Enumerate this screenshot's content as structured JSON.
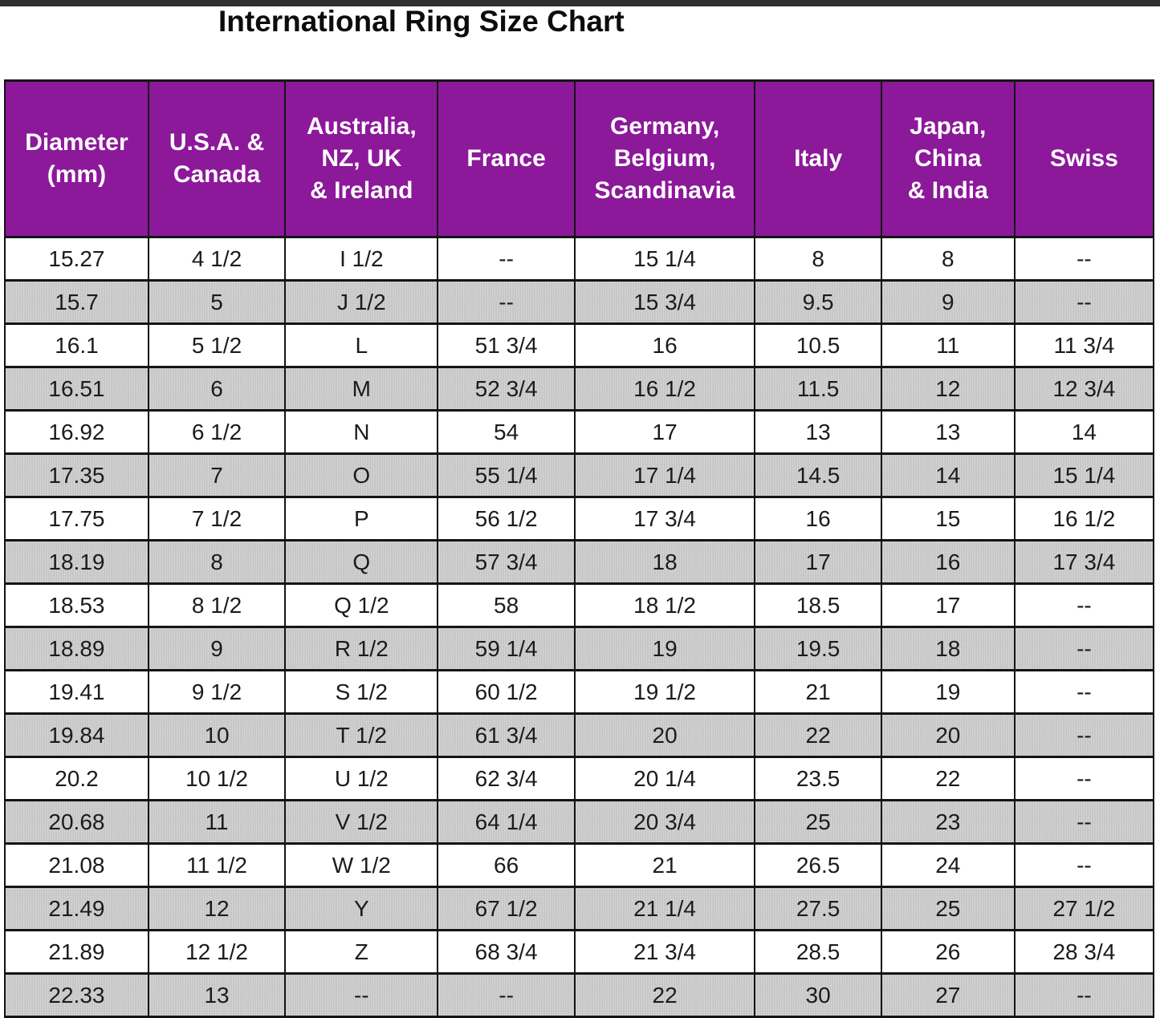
{
  "title": "International Ring Size Chart",
  "colors": {
    "header_bg": "#8c189a",
    "header_text": "#ffffff",
    "gray_row_bg": "#c7c7c7",
    "white_row_bg": "#ffffff",
    "grid_border": "#141414",
    "top_bar": "#2f2f2f"
  },
  "table": {
    "columns": [
      {
        "id": "diameter-mm",
        "label": "Diameter (mm)",
        "lines": [
          "Diameter",
          "(mm)"
        ]
      },
      {
        "id": "usa-canada",
        "label": "U.S.A. & Canada",
        "lines": [
          "U.S.A. &",
          "Canada"
        ]
      },
      {
        "id": "australia-nz-uk-ireland",
        "label": "Australia, NZ, UK & Ireland",
        "lines": [
          "Australia,",
          "NZ, UK",
          "& Ireland"
        ]
      },
      {
        "id": "france",
        "label": "France",
        "lines": [
          "France"
        ]
      },
      {
        "id": "germany-belgium-scandinavia",
        "label": "Germany, Belgium, Scandinavia",
        "lines": [
          "Germany,",
          "Belgium,",
          "Scandinavia"
        ]
      },
      {
        "id": "italy",
        "label": "Italy",
        "lines": [
          "Italy"
        ]
      },
      {
        "id": "japan-china-india",
        "label": "Japan, China & India",
        "lines": [
          "Japan,",
          "China",
          "& India"
        ]
      },
      {
        "id": "swiss",
        "label": "Swiss",
        "lines": [
          "Swiss"
        ]
      }
    ],
    "rows": [
      [
        "15.27",
        "4 1/2",
        "I 1/2",
        "--",
        "15 1/4",
        "8",
        "8",
        "--"
      ],
      [
        "15.7",
        "5",
        "J 1/2",
        "--",
        "15 3/4",
        "9.5",
        "9",
        "--"
      ],
      [
        "16.1",
        "5 1/2",
        "L",
        "51 3/4",
        "16",
        "10.5",
        "11",
        "11 3/4"
      ],
      [
        "16.51",
        "6",
        "M",
        "52 3/4",
        "16 1/2",
        "11.5",
        "12",
        "12 3/4"
      ],
      [
        "16.92",
        "6 1/2",
        "N",
        "54",
        "17",
        "13",
        "13",
        "14"
      ],
      [
        "17.35",
        "7",
        "O",
        "55 1/4",
        "17 1/4",
        "14.5",
        "14",
        "15 1/4"
      ],
      [
        "17.75",
        "7 1/2",
        "P",
        "56 1/2",
        "17 3/4",
        "16",
        "15",
        "16 1/2"
      ],
      [
        "18.19",
        "8",
        "Q",
        "57 3/4",
        "18",
        "17",
        "16",
        "17 3/4"
      ],
      [
        "18.53",
        "8 1/2",
        "Q 1/2",
        "58",
        "18 1/2",
        "18.5",
        "17",
        "--"
      ],
      [
        "18.89",
        "9",
        "R 1/2",
        "59 1/4",
        "19",
        "19.5",
        "18",
        "--"
      ],
      [
        "19.41",
        "9 1/2",
        "S 1/2",
        "60 1/2",
        "19 1/2",
        "21",
        "19",
        "--"
      ],
      [
        "19.84",
        "10",
        "T 1/2",
        "61 3/4",
        "20",
        "22",
        "20",
        "--"
      ],
      [
        "20.2",
        "10 1/2",
        "U 1/2",
        "62 3/4",
        "20 1/4",
        "23.5",
        "22",
        "--"
      ],
      [
        "20.68",
        "11",
        "V 1/2",
        "64 1/4",
        "20 3/4",
        "25",
        "23",
        "--"
      ],
      [
        "21.08",
        "11 1/2",
        "W 1/2",
        "66",
        "21",
        "26.5",
        "24",
        "--"
      ],
      [
        "21.49",
        "12",
        "Y",
        "67 1/2",
        "21 1/4",
        "27.5",
        "25",
        "27 1/2"
      ],
      [
        "21.89",
        "12 1/2",
        "Z",
        "68 3/4",
        "21 3/4",
        "28.5",
        "26",
        "28 3/4"
      ],
      [
        "22.33",
        "13",
        "--",
        "--",
        "22",
        "30",
        "27",
        "--"
      ]
    ]
  },
  "chart_data": {
    "type": "table",
    "title": "International Ring Size Chart",
    "columns": [
      "Diameter (mm)",
      "U.S.A. & Canada",
      "Australia, NZ, UK & Ireland",
      "France",
      "Germany, Belgium, Scandinavia",
      "Italy",
      "Japan, China & India",
      "Swiss"
    ],
    "rows": [
      [
        "15.27",
        "4 1/2",
        "I 1/2",
        "--",
        "15 1/4",
        "8",
        "8",
        "--"
      ],
      [
        "15.7",
        "5",
        "J 1/2",
        "--",
        "15 3/4",
        "9.5",
        "9",
        "--"
      ],
      [
        "16.1",
        "5 1/2",
        "L",
        "51 3/4",
        "16",
        "10.5",
        "11",
        "11 3/4"
      ],
      [
        "16.51",
        "6",
        "M",
        "52 3/4",
        "16 1/2",
        "11.5",
        "12",
        "12 3/4"
      ],
      [
        "16.92",
        "6 1/2",
        "N",
        "54",
        "17",
        "13",
        "13",
        "14"
      ],
      [
        "17.35",
        "7",
        "O",
        "55 1/4",
        "17 1/4",
        "14.5",
        "14",
        "15 1/4"
      ],
      [
        "17.75",
        "7 1/2",
        "P",
        "56 1/2",
        "17 3/4",
        "16",
        "15",
        "16 1/2"
      ],
      [
        "18.19",
        "8",
        "Q",
        "57 3/4",
        "18",
        "17",
        "16",
        "17 3/4"
      ],
      [
        "18.53",
        "8 1/2",
        "Q 1/2",
        "58",
        "18 1/2",
        "18.5",
        "17",
        "--"
      ],
      [
        "18.89",
        "9",
        "R 1/2",
        "59 1/4",
        "19",
        "19.5",
        "18",
        "--"
      ],
      [
        "19.41",
        "9 1/2",
        "S 1/2",
        "60 1/2",
        "19 1/2",
        "21",
        "19",
        "--"
      ],
      [
        "19.84",
        "10",
        "T 1/2",
        "61 3/4",
        "20",
        "22",
        "20",
        "--"
      ],
      [
        "20.2",
        "10 1/2",
        "U 1/2",
        "62 3/4",
        "20 1/4",
        "23.5",
        "22",
        "--"
      ],
      [
        "20.68",
        "11",
        "V 1/2",
        "64 1/4",
        "20 3/4",
        "25",
        "23",
        "--"
      ],
      [
        "21.08",
        "11 1/2",
        "W 1/2",
        "66",
        "21",
        "26.5",
        "24",
        "--"
      ],
      [
        "21.49",
        "12",
        "Y",
        "67 1/2",
        "21 1/4",
        "27.5",
        "25",
        "27 1/2"
      ],
      [
        "21.89",
        "12 1/2",
        "Z",
        "68 3/4",
        "21 3/4",
        "28.5",
        "26",
        "28 3/4"
      ],
      [
        "22.33",
        "13",
        "--",
        "--",
        "22",
        "30",
        "27",
        "--"
      ]
    ]
  }
}
